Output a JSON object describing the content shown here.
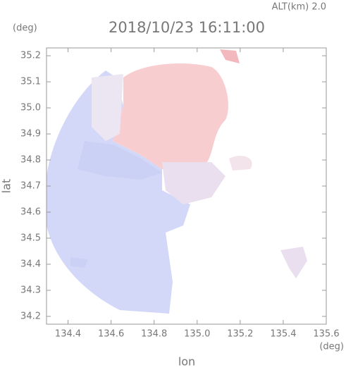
{
  "chart_data": {
    "type": "map",
    "title": "2018/10/23 16:11:00",
    "subtitle": "ALT(km) 2.0",
    "x_label": "lon",
    "y_label": "lat",
    "x_unit": "(deg)",
    "y_unit": "(deg)",
    "xlim": [
      134.3,
      135.6
    ],
    "xticks": [
      134.4,
      134.6,
      134.8,
      {
        "value": 135.0,
        "label": "135.0"
      },
      135.2,
      135.4,
      135.6
    ],
    "ylim": [
      34.17,
      35.23
    ],
    "yticks": [
      34.2,
      34.3,
      34.4,
      34.5,
      34.6,
      34.7,
      34.8,
      34.9,
      {
        "value": 35.0,
        "label": "35.0"
      },
      35.1,
      35.2
    ]
  }
}
